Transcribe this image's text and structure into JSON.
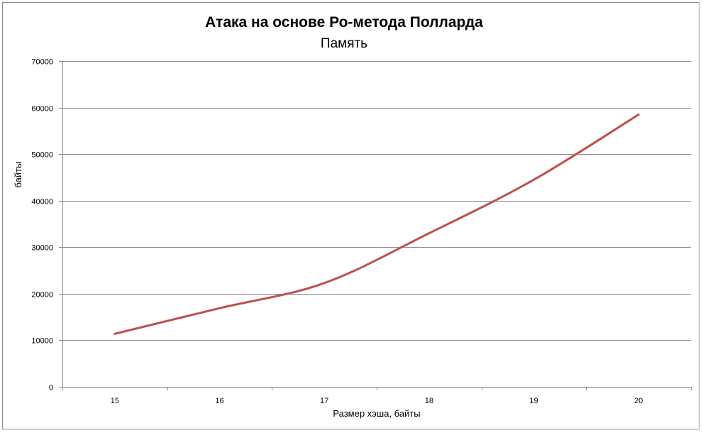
{
  "chart_data": {
    "type": "line",
    "title": "Атака на основе Ро-метода Полларда",
    "subtitle": "Память",
    "xlabel": "Размер хэша, байты",
    "ylabel": "байты",
    "categories": [
      "15",
      "16",
      "17",
      "18",
      "19",
      "20"
    ],
    "series": [
      {
        "values": [
          11400,
          16900,
          22300,
          33000,
          44500,
          58500
        ],
        "color": "#c0504d"
      }
    ],
    "ylim": [
      0,
      70000
    ],
    "yticks": [
      "0",
      "10000",
      "20000",
      "30000",
      "40000",
      "50000",
      "60000",
      "70000"
    ],
    "grid": true,
    "legend": "none"
  }
}
